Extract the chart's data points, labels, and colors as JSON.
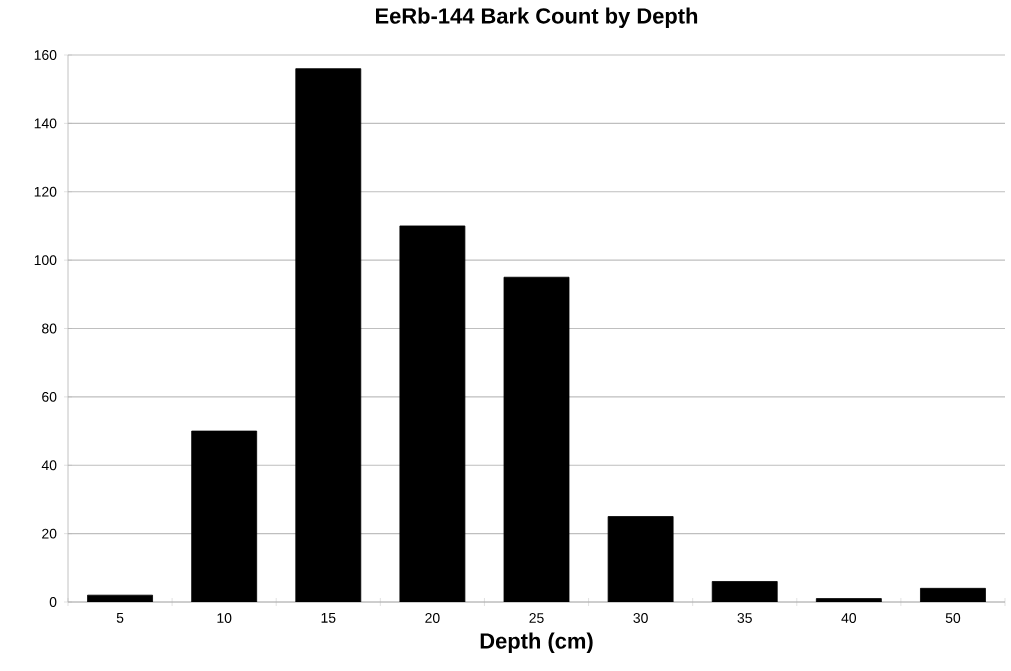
{
  "chart_data": {
    "type": "bar",
    "title": "EeRb-144 Bark Count by Depth",
    "xlabel": "Depth (cm)",
    "categories": [
      "5",
      "10",
      "15",
      "20",
      "25",
      "30",
      "35",
      "40",
      "50"
    ],
    "values": [
      2,
      50,
      156,
      110,
      95,
      25,
      6,
      1,
      4
    ],
    "color": "#000000",
    "ylim": [
      0,
      160
    ],
    "yticks": [
      0,
      20,
      40,
      60,
      80,
      100,
      120,
      140,
      160
    ],
    "grid": "y"
  }
}
